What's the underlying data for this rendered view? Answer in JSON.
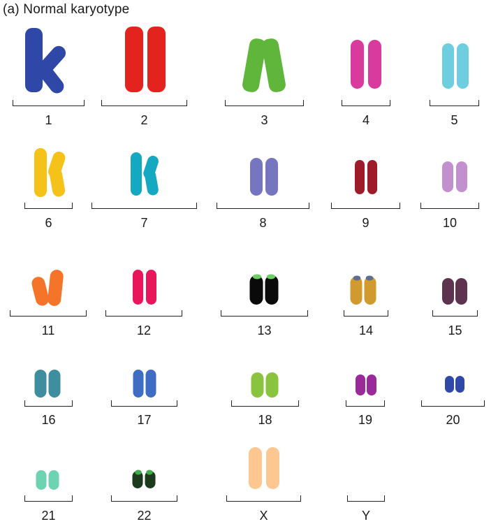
{
  "title": "(a)  Normal karyotype",
  "chromosomes": [
    {
      "label": "1",
      "color": "#2f47a6"
    },
    {
      "label": "2",
      "color": "#e3231e"
    },
    {
      "label": "3",
      "color": "#5fb63a"
    },
    {
      "label": "4",
      "color": "#d83a9e"
    },
    {
      "label": "5",
      "color": "#6ecee0"
    },
    {
      "label": "6",
      "color": "#f5c21a"
    },
    {
      "label": "7",
      "color": "#14a9c0"
    },
    {
      "label": "8",
      "color": "#7676c0"
    },
    {
      "label": "9",
      "color": "#9e1c2a"
    },
    {
      "label": "10",
      "color": "#c28fcf"
    },
    {
      "label": "11",
      "color": "#f4742a"
    },
    {
      "label": "12",
      "color": "#e8175c"
    },
    {
      "label": "13",
      "color": "#0a0a0a",
      "tip": "#6fcf63"
    },
    {
      "label": "14",
      "color": "#d09a2e",
      "tip": "#5d6f8e"
    },
    {
      "label": "15",
      "color": "#5e3350"
    },
    {
      "label": "16",
      "color": "#3f8ea0"
    },
    {
      "label": "17",
      "color": "#3d6ec4"
    },
    {
      "label": "18",
      "color": "#8ac43e"
    },
    {
      "label": "19",
      "color": "#9a2a9a"
    },
    {
      "label": "20",
      "color": "#3048a8"
    },
    {
      "label": "21",
      "color": "#6ed3b0"
    },
    {
      "label": "22",
      "color": "#1c3a1c",
      "tip": "#3fae4a"
    },
    {
      "label": "X",
      "color": "#fcc791"
    },
    {
      "label": "Y",
      "color": ""
    }
  ]
}
